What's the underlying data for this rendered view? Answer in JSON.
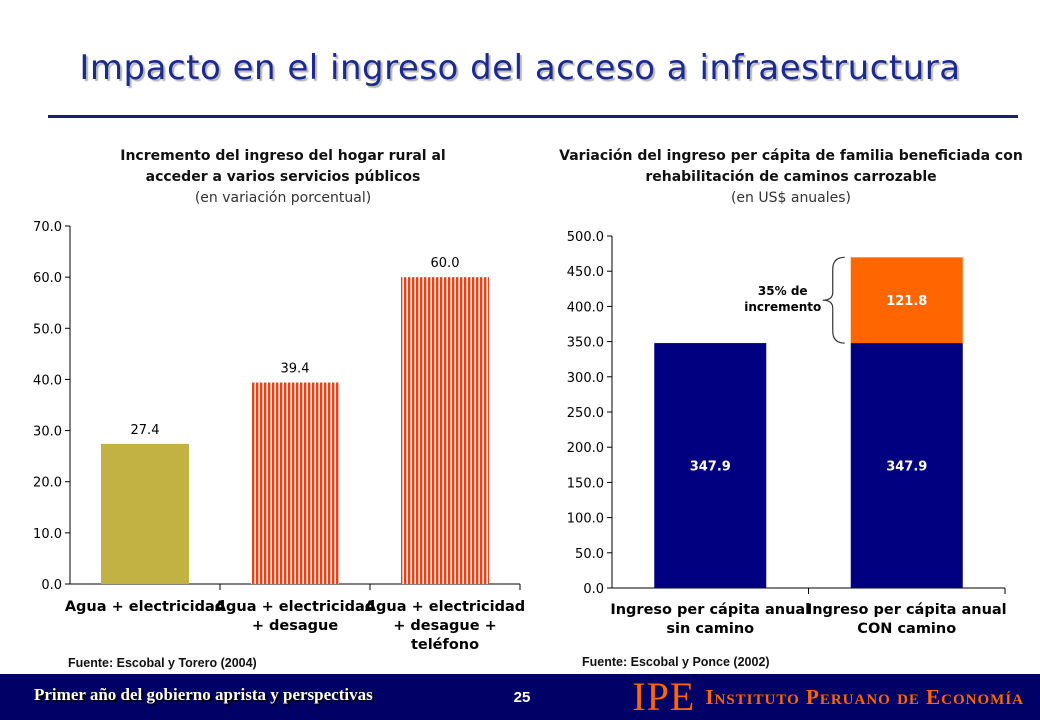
{
  "slide": {
    "title": "Impacto en el ingreso del acceso a infraestructura"
  },
  "footer": {
    "left_text": "Primer año del gobierno aprista y perspectivas",
    "page_number": "25",
    "logo": "IPE",
    "brand_name": "Instituto Peruano de Economía"
  },
  "colors": {
    "title": "#1c2a8c",
    "footer_bg": "#000066",
    "brand_orange": "#ff6600",
    "olive_bar": "#c2b244",
    "hatch_red": "#e8421c",
    "navy_bar": "#000080",
    "orange_bar": "#ff6600"
  },
  "chart_data": [
    {
      "type": "bar",
      "title": "Incremento del ingreso del hogar rural al acceder a varios servicios públicos",
      "subtitle": "(en variación porcentual)",
      "categories": [
        [
          "Agua + electricidad"
        ],
        [
          "Agua + electricidad",
          "+ desague"
        ],
        [
          "Agua + electricidad",
          "+ desague +",
          "teléfono"
        ]
      ],
      "values": [
        27.4,
        39.4,
        60.0
      ],
      "value_labels": [
        "27.4",
        "39.4",
        "60.0"
      ],
      "ylim": [
        0,
        70
      ],
      "yticks": [
        0,
        10,
        20,
        30,
        40,
        50,
        60,
        70
      ],
      "ytick_labels": [
        "0.0",
        "10.0",
        "20.0",
        "30.0",
        "40.0",
        "50.0",
        "60.0",
        "70.0"
      ],
      "source": "Fuente: Escobal y Torero (2004)"
    },
    {
      "type": "bar",
      "stacked": true,
      "title": "Variación del ingreso per cápita de familia beneficiada con rehabilitación de caminos carrozable",
      "subtitle": "(en US$ anuales)",
      "categories": [
        [
          "Ingreso per cápita anual",
          "sin camino"
        ],
        [
          "Ingreso per cápita anual",
          "CON camino"
        ]
      ],
      "series": [
        {
          "values": [
            347.9,
            347.9
          ],
          "labels": [
            "347.9",
            "347.9"
          ]
        },
        {
          "values": [
            0,
            121.8
          ],
          "labels": [
            "",
            "121.8"
          ]
        }
      ],
      "annotation": [
        "35% de",
        "incremento"
      ],
      "ylim": [
        0,
        500
      ],
      "yticks": [
        0,
        50,
        100,
        150,
        200,
        250,
        300,
        350,
        400,
        450,
        500
      ],
      "ytick_labels": [
        "0.0",
        "50.0",
        "100.0",
        "150.0",
        "200.0",
        "250.0",
        "300.0",
        "350.0",
        "400.0",
        "450.0",
        "500.0"
      ],
      "source": "Fuente: Escobal y Ponce (2002)"
    }
  ]
}
